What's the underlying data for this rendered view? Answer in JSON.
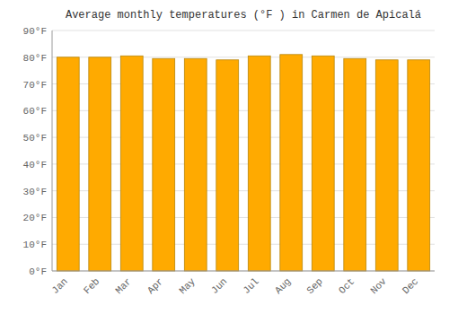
{
  "chart_data": {
    "type": "bar",
    "title": "Average monthly temperatures (°F ) in Carmen de Apicalá",
    "categories": [
      "Jan",
      "Feb",
      "Mar",
      "Apr",
      "May",
      "Jun",
      "Jul",
      "Aug",
      "Sep",
      "Oct",
      "Nov",
      "Dec"
    ],
    "values": [
      80.0,
      80.0,
      80.5,
      79.5,
      79.5,
      79.0,
      80.5,
      81.0,
      80.5,
      79.5,
      79.0,
      79.0
    ],
    "color": "#FFAA00",
    "ylim": [
      0,
      90
    ],
    "yticks": [
      {
        "value": 0,
        "label": "0°F"
      },
      {
        "value": 10,
        "label": "10°F"
      },
      {
        "value": 20,
        "label": "20°F"
      },
      {
        "value": 30,
        "label": "30°F"
      },
      {
        "value": 40,
        "label": "40°F"
      },
      {
        "value": 50,
        "label": "50°F"
      },
      {
        "value": 60,
        "label": "60°F"
      },
      {
        "value": 70,
        "label": "70°F"
      },
      {
        "value": 80,
        "label": "80°F"
      },
      {
        "value": 90,
        "label": "90°F"
      }
    ],
    "grid": true
  }
}
